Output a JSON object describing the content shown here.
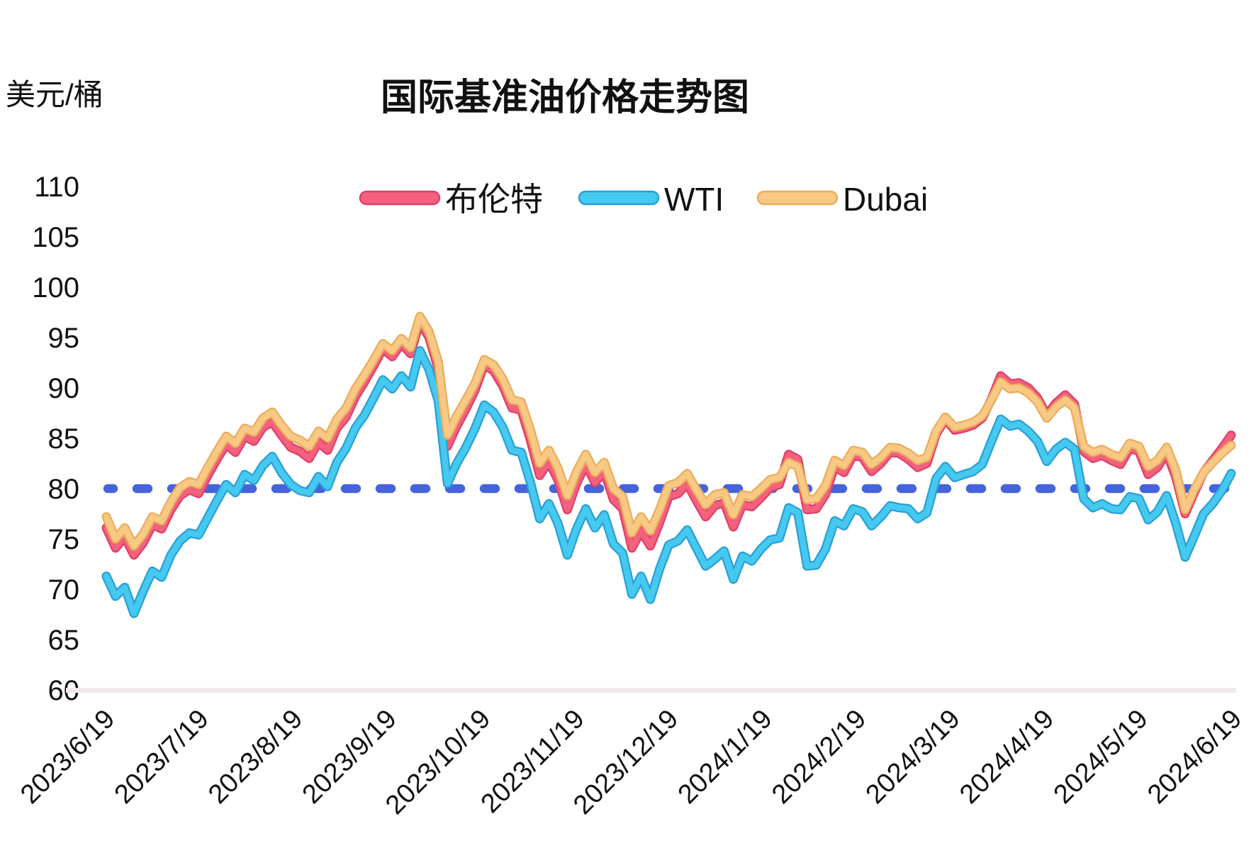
{
  "chart_data": {
    "type": "line",
    "title": "国际基准油价格走势图",
    "unit_label": "美元/桶",
    "ylim": [
      60,
      110
    ],
    "y_ticks": [
      110,
      105,
      100,
      95,
      90,
      85,
      80,
      75,
      70,
      65,
      60
    ],
    "x_tick_labels": [
      "2023/6/19",
      "2023/7/19",
      "2023/8/19",
      "2023/9/19",
      "2023/10/19",
      "2023/11/19",
      "2023/12/19",
      "2024/1/19",
      "2024/2/19",
      "2024/3/19",
      "2024/4/19",
      "2024/5/19",
      "2024/6/19"
    ],
    "x_step_days": 3,
    "x_total_days": 366,
    "grid": "off",
    "legend_position": "top-center",
    "axis_baseline_color": "#EFE9E9",
    "text_color": "#111111",
    "reference_line": {
      "value": 80,
      "style": "dashed",
      "color": "#4563DB",
      "edge_color": "#3A50C8"
    },
    "series": [
      {
        "key": "brent",
        "name": "布伦特",
        "color": "#F2617E",
        "outline": "#E0406A",
        "values": [
          76.1,
          74.1,
          75.2,
          73.4,
          74.6,
          76.4,
          76.0,
          77.9,
          79.3,
          79.9,
          79.5,
          81.3,
          82.9,
          84.4,
          83.6,
          85.2,
          84.7,
          86.1,
          86.6,
          85.3,
          84.1,
          83.7,
          83.0,
          84.6,
          83.8,
          86.0,
          87.1,
          89.1,
          90.6,
          92.2,
          93.9,
          93.1,
          94.4,
          93.4,
          96.6,
          95.0,
          91.9,
          84.2,
          86.2,
          87.9,
          89.8,
          92.3,
          91.7,
          90.2,
          88.0,
          87.8,
          84.8,
          81.3,
          82.7,
          80.8,
          77.9,
          80.5,
          82.4,
          80.6,
          81.7,
          78.9,
          78.0,
          74.1,
          75.8,
          74.3,
          76.6,
          79.2,
          79.5,
          80.5,
          78.8,
          77.2,
          78.3,
          78.6,
          76.2,
          78.4,
          78.2,
          79.1,
          80.1,
          80.4,
          83.4,
          82.9,
          77.9,
          78.0,
          79.4,
          82.2,
          81.6,
          83.3,
          83.1,
          81.7,
          82.5,
          83.6,
          83.5,
          82.9,
          82.1,
          82.5,
          85.4,
          86.9,
          85.8,
          86.0,
          86.3,
          87.0,
          88.9,
          91.2,
          90.4,
          90.5,
          90.0,
          89.0,
          87.3,
          88.5,
          89.3,
          88.4,
          83.7,
          83.0,
          83.3,
          82.8,
          82.4,
          84.0,
          83.7,
          81.4,
          82.1,
          83.6,
          81.1,
          77.5,
          79.6,
          81.6,
          82.8,
          84.0,
          85.3
        ]
      },
      {
        "key": "wti",
        "name": "WTI",
        "color": "#45C9EE",
        "outline": "#2A9FD9",
        "values": [
          71.3,
          69.3,
          70.2,
          67.6,
          69.8,
          71.8,
          71.2,
          73.4,
          74.8,
          75.6,
          75.4,
          77.1,
          78.8,
          80.4,
          79.6,
          81.4,
          80.8,
          82.3,
          83.2,
          81.6,
          80.4,
          79.8,
          79.6,
          81.2,
          80.2,
          82.6,
          84.0,
          86.0,
          87.3,
          89.0,
          90.8,
          89.9,
          91.2,
          90.1,
          93.7,
          91.8,
          88.7,
          80.5,
          82.5,
          84.1,
          86.0,
          88.3,
          87.6,
          86.1,
          83.8,
          83.6,
          80.6,
          77.0,
          78.5,
          76.5,
          73.4,
          76.0,
          78.0,
          76.1,
          77.4,
          74.5,
          73.6,
          69.5,
          71.3,
          69.0,
          72.0,
          74.4,
          74.8,
          75.9,
          74.1,
          72.3,
          73.0,
          73.8,
          71.0,
          73.3,
          72.8,
          74.0,
          74.9,
          75.1,
          78.1,
          77.6,
          72.3,
          72.4,
          74.0,
          76.8,
          76.3,
          78.0,
          77.7,
          76.3,
          77.2,
          78.3,
          78.1,
          78.0,
          77.0,
          77.6,
          81.0,
          82.2,
          81.1,
          81.4,
          81.7,
          82.4,
          84.7,
          86.9,
          86.2,
          86.4,
          85.7,
          84.7,
          82.7,
          83.9,
          84.6,
          83.9,
          79.0,
          78.1,
          78.5,
          78.0,
          77.9,
          79.2,
          79.0,
          76.9,
          77.7,
          79.3,
          76.5,
          73.2,
          75.3,
          77.5,
          78.5,
          79.8,
          81.5
        ]
      },
      {
        "key": "dubai",
        "name": "Dubai",
        "color": "#F7C984",
        "outline": "#ECAC5B",
        "values": [
          77.2,
          75.0,
          76.1,
          74.3,
          75.5,
          77.2,
          76.8,
          78.7,
          80.1,
          80.7,
          80.4,
          82.1,
          83.7,
          85.2,
          84.5,
          86.0,
          85.6,
          87.0,
          87.6,
          86.3,
          85.2,
          84.8,
          84.2,
          85.7,
          85.0,
          86.9,
          88.0,
          89.9,
          91.3,
          92.8,
          94.4,
          93.7,
          94.9,
          94.0,
          97.1,
          95.6,
          92.6,
          85.3,
          87.2,
          88.8,
          90.5,
          92.8,
          92.3,
          90.9,
          88.8,
          88.6,
          85.8,
          82.5,
          83.8,
          82.0,
          79.3,
          81.7,
          83.4,
          81.6,
          82.6,
          80.0,
          79.2,
          75.6,
          77.2,
          75.8,
          77.9,
          80.3,
          80.6,
          81.5,
          79.9,
          78.4,
          79.4,
          79.6,
          77.4,
          79.4,
          79.2,
          80.0,
          80.9,
          81.1,
          82.6,
          82.2,
          78.9,
          79.0,
          80.3,
          82.8,
          82.3,
          83.8,
          83.6,
          82.4,
          83.1,
          84.1,
          84.0,
          83.5,
          82.8,
          83.1,
          85.7,
          87.1,
          86.1,
          86.3,
          86.6,
          87.2,
          88.8,
          90.6,
          89.9,
          90.0,
          89.5,
          88.6,
          87.0,
          88.1,
          88.8,
          88.0,
          84.2,
          83.6,
          83.9,
          83.4,
          83.1,
          84.5,
          84.2,
          82.2,
          82.8,
          84.1,
          81.8,
          77.9,
          79.9,
          81.6,
          82.6,
          83.5,
          84.3
        ]
      }
    ]
  }
}
